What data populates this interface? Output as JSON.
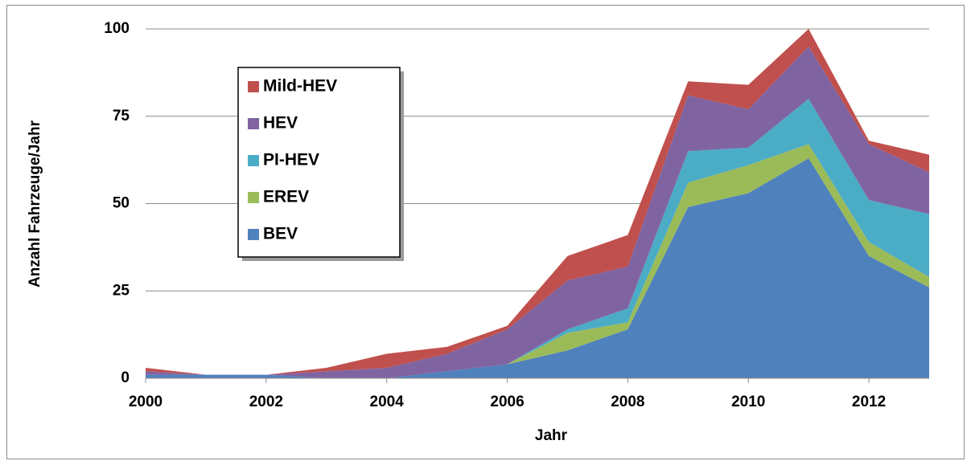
{
  "chart_data": {
    "type": "area",
    "xlabel": "Jahr",
    "ylabel": "Anzahl Fahrzeuge/Jahr",
    "x": [
      2000,
      2001,
      2002,
      2003,
      2004,
      2005,
      2006,
      2007,
      2008,
      2009,
      2010,
      2011,
      2012,
      2013
    ],
    "series": [
      {
        "name": "BEV",
        "color": "#4f81bd",
        "values": [
          1,
          1,
          1,
          0,
          0,
          2,
          4,
          8,
          14,
          49,
          53,
          63,
          35,
          26
        ]
      },
      {
        "name": "EREV",
        "color": "#9bbb59",
        "values": [
          0,
          0,
          0,
          0,
          0,
          0,
          0,
          5,
          2,
          7,
          8,
          4,
          4,
          3
        ]
      },
      {
        "name": "PI-HEV",
        "color": "#4bacc6",
        "values": [
          0,
          0,
          0,
          0,
          0,
          0,
          0,
          1,
          4,
          9,
          5,
          13,
          12,
          18
        ]
      },
      {
        "name": "HEV",
        "color": "#8064a2",
        "values": [
          1,
          0,
          0,
          2,
          3,
          5,
          10,
          14,
          12,
          16,
          11,
          15,
          16,
          12
        ]
      },
      {
        "name": "Mild-HEV",
        "color": "#c0504d",
        "values": [
          1,
          0,
          0,
          1,
          4,
          2,
          1,
          7,
          9,
          4,
          7,
          5,
          1,
          5
        ]
      }
    ],
    "xlim": [
      2000,
      2013
    ],
    "xticks": [
      2000,
      2002,
      2004,
      2006,
      2008,
      2010,
      2012
    ],
    "ylim": [
      0,
      100
    ],
    "yticks": [
      0,
      25,
      50,
      75,
      100
    ],
    "grid": true,
    "stacked": true
  }
}
